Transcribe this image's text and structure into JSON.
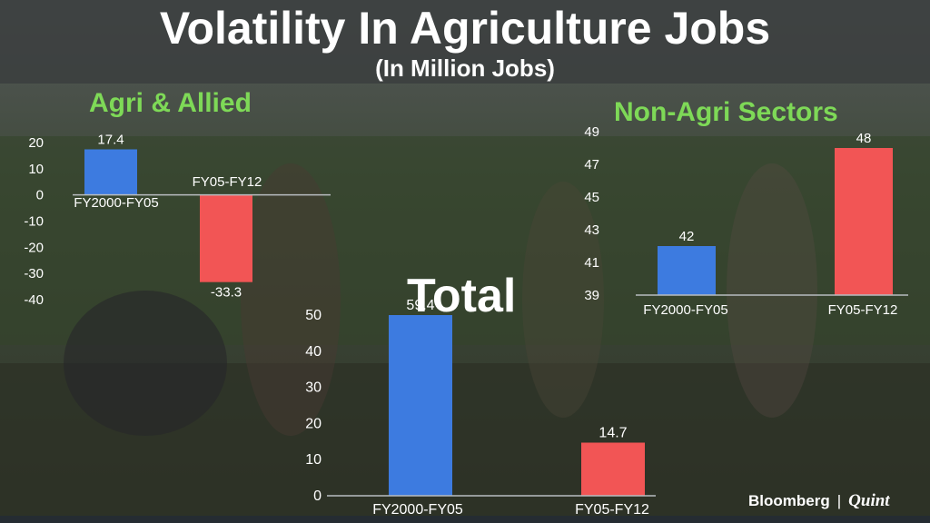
{
  "header": {
    "title": "Volatility In Agriculture Jobs",
    "subtitle": "(In Million Jobs)"
  },
  "branding": {
    "left": "Bloomberg",
    "separator": "|",
    "right": "Quint"
  },
  "colors": {
    "series_a": "#3d7be0",
    "series_b": "#f25555",
    "panel_title": "#7ed957",
    "axis": "#b8bcc0"
  },
  "chart_data": [
    {
      "type": "bar",
      "title": "Agri & Allied",
      "categories": [
        "FY2000-FY05",
        "FY05-FY12"
      ],
      "values": [
        17.4,
        -33.3
      ],
      "value_labels": [
        "17.4",
        "-33.3"
      ],
      "ylim": [
        -40,
        20
      ],
      "yticks": [
        20,
        10,
        0,
        -10,
        -20,
        -30,
        -40
      ],
      "ytick_labels": [
        "20",
        "10",
        "0",
        "-10",
        "-20",
        "-30",
        "-40"
      ],
      "grid": false
    },
    {
      "type": "bar",
      "title": "Non-Agri Sectors",
      "categories": [
        "FY2000-FY05",
        "FY05-FY12"
      ],
      "values": [
        42,
        48
      ],
      "value_labels": [
        "42",
        "48"
      ],
      "ylim": [
        39,
        49
      ],
      "yticks": [
        49,
        47,
        45,
        43,
        41,
        39
      ],
      "ytick_labels": [
        "49",
        "47",
        "45",
        "43",
        "41",
        "39"
      ],
      "grid": false
    },
    {
      "type": "bar",
      "title": "Total",
      "categories": [
        "FY2000-FY05",
        "FY05-FY12"
      ],
      "values": [
        59.4,
        14.7
      ],
      "value_labels": [
        "59.4",
        "14.7"
      ],
      "ylim": [
        0,
        50
      ],
      "yticks": [
        50,
        40,
        30,
        20,
        10,
        0
      ],
      "ytick_labels": [
        "50",
        "40",
        "30",
        "20",
        "10",
        "0"
      ],
      "grid": false
    }
  ]
}
